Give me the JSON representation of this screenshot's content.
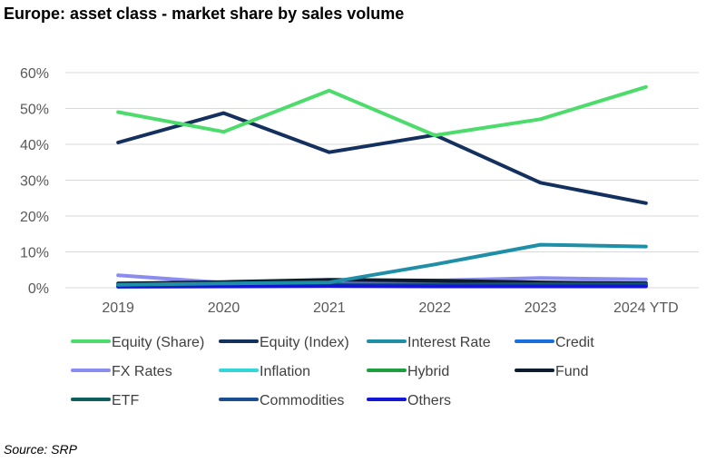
{
  "title": "Europe: asset class - market share by sales volume",
  "source": "Source: SRP",
  "chart_data": {
    "type": "line",
    "title": "Europe: asset class - market share by sales volume",
    "xlabel": "",
    "ylabel": "",
    "categories": [
      "2019",
      "2020",
      "2021",
      "2022",
      "2023",
      "2024 YTD"
    ],
    "y_ticks": [
      "0%",
      "10%",
      "20%",
      "30%",
      "40%",
      "50%",
      "60%"
    ],
    "ylim": [
      0,
      60
    ],
    "grid": true,
    "legend_position": "bottom",
    "series": [
      {
        "name": "Equity (Share)",
        "color": "#4ddc6c",
        "values": [
          49,
          43.5,
          55,
          42.5,
          47,
          56
        ]
      },
      {
        "name": "Equity (Index)",
        "color": "#14305e",
        "values": [
          40.5,
          48.7,
          37.8,
          42.6,
          29.3,
          23.6
        ]
      },
      {
        "name": "Interest Rate",
        "color": "#1f8fa8",
        "values": [
          0.8,
          1.2,
          1.5,
          6.5,
          12,
          11.5
        ]
      },
      {
        "name": "Credit",
        "color": "#1a6fe0",
        "values": [
          0.9,
          1.0,
          1.4,
          1.6,
          1.4,
          1.3
        ]
      },
      {
        "name": "FX Rates",
        "color": "#8a8cf0",
        "values": [
          3.5,
          1.4,
          1.8,
          2.0,
          2.7,
          2.3
        ]
      },
      {
        "name": "Inflation",
        "color": "#33d6d9",
        "values": [
          0.2,
          0.3,
          0.4,
          0.3,
          0.3,
          0.3
        ]
      },
      {
        "name": "Hybrid",
        "color": "#1f9e3e",
        "values": [
          0.4,
          0.4,
          0.5,
          0.6,
          0.7,
          0.7
        ]
      },
      {
        "name": "Fund",
        "color": "#0d1b2e",
        "values": [
          1.2,
          1.6,
          2.2,
          2.0,
          1.5,
          1.2
        ]
      },
      {
        "name": "ETF",
        "color": "#0f5e5e",
        "values": [
          0.6,
          0.7,
          0.8,
          0.9,
          1.0,
          0.9
        ]
      },
      {
        "name": "Commodities",
        "color": "#1b4d91",
        "values": [
          0.5,
          0.6,
          0.9,
          0.7,
          0.6,
          0.6
        ]
      },
      {
        "name": "Others",
        "color": "#1515d4",
        "values": [
          0.3,
          0.4,
          0.5,
          0.4,
          0.4,
          0.4
        ]
      }
    ]
  }
}
